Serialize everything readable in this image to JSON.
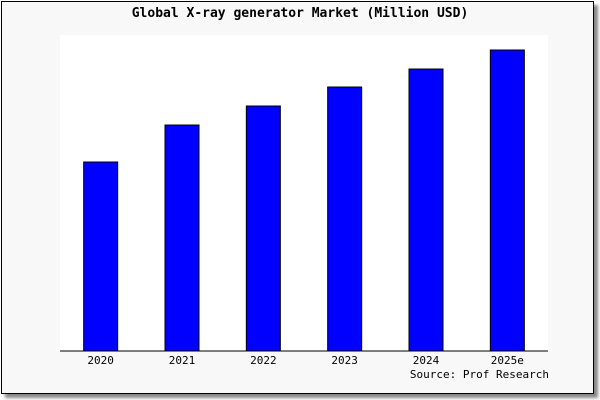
{
  "chart_data": {
    "type": "bar",
    "title": "Global X-ray generator Market (Million USD)",
    "categories": [
      "2020",
      "2021",
      "2022",
      "2023",
      "2024",
      "2025e"
    ],
    "values": [
      189,
      226,
      245,
      264,
      282,
      301
    ],
    "ylim": [
      0,
      316
    ],
    "xlabel": "",
    "ylabel": "",
    "grid": false,
    "bar_color": "#0000ff",
    "source": "Source: Prof Research"
  }
}
